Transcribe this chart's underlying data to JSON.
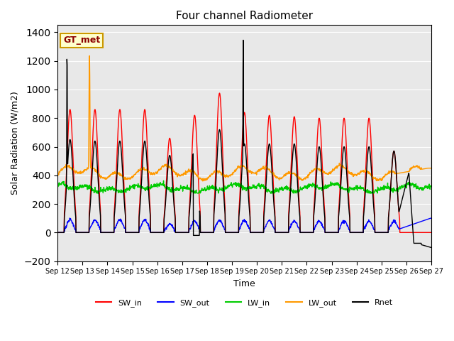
{
  "title": "Four channel Radiometer",
  "xlabel": "Time",
  "ylabel": "Solar Radiation (W/m2)",
  "ylim": [
    -200,
    1450
  ],
  "annotation": "GT_met",
  "bg_color": "#e8e8e8",
  "x_ticks": [
    "Sep 12",
    "Sep 13",
    "Sep 14",
    "Sep 15",
    "Sep 16",
    "Sep 17",
    "Sep 18",
    "Sep 19",
    "Sep 20",
    "Sep 21",
    "Sep 22",
    "Sep 23",
    "Sep 24",
    "Sep 25",
    "Sep 26",
    "Sep 27"
  ],
  "legend": [
    {
      "label": "SW_in",
      "color": "#ff0000"
    },
    {
      "label": "SW_out",
      "color": "#0000ff"
    },
    {
      "label": "LW_in",
      "color": "#00cc00"
    },
    {
      "label": "LW_out",
      "color": "#ff9900"
    },
    {
      "label": "Rnet",
      "color": "#000000"
    }
  ],
  "sw_in_peaks": [
    860,
    860,
    860,
    860,
    660,
    820,
    975,
    840,
    820,
    810,
    800,
    800,
    800,
    570,
    0
  ],
  "sw_out_peaks": [
    90,
    90,
    90,
    90,
    60,
    80,
    85,
    85,
    85,
    80,
    80,
    80,
    80,
    80,
    0
  ],
  "rnet_day_peaks": [
    650,
    640,
    640,
    640,
    540,
    620,
    720,
    620,
    620,
    620,
    600,
    600,
    600,
    570,
    0
  ],
  "lw_in_base": 315,
  "lw_out_base": 400,
  "n_days": 15,
  "n_per_day": 96
}
